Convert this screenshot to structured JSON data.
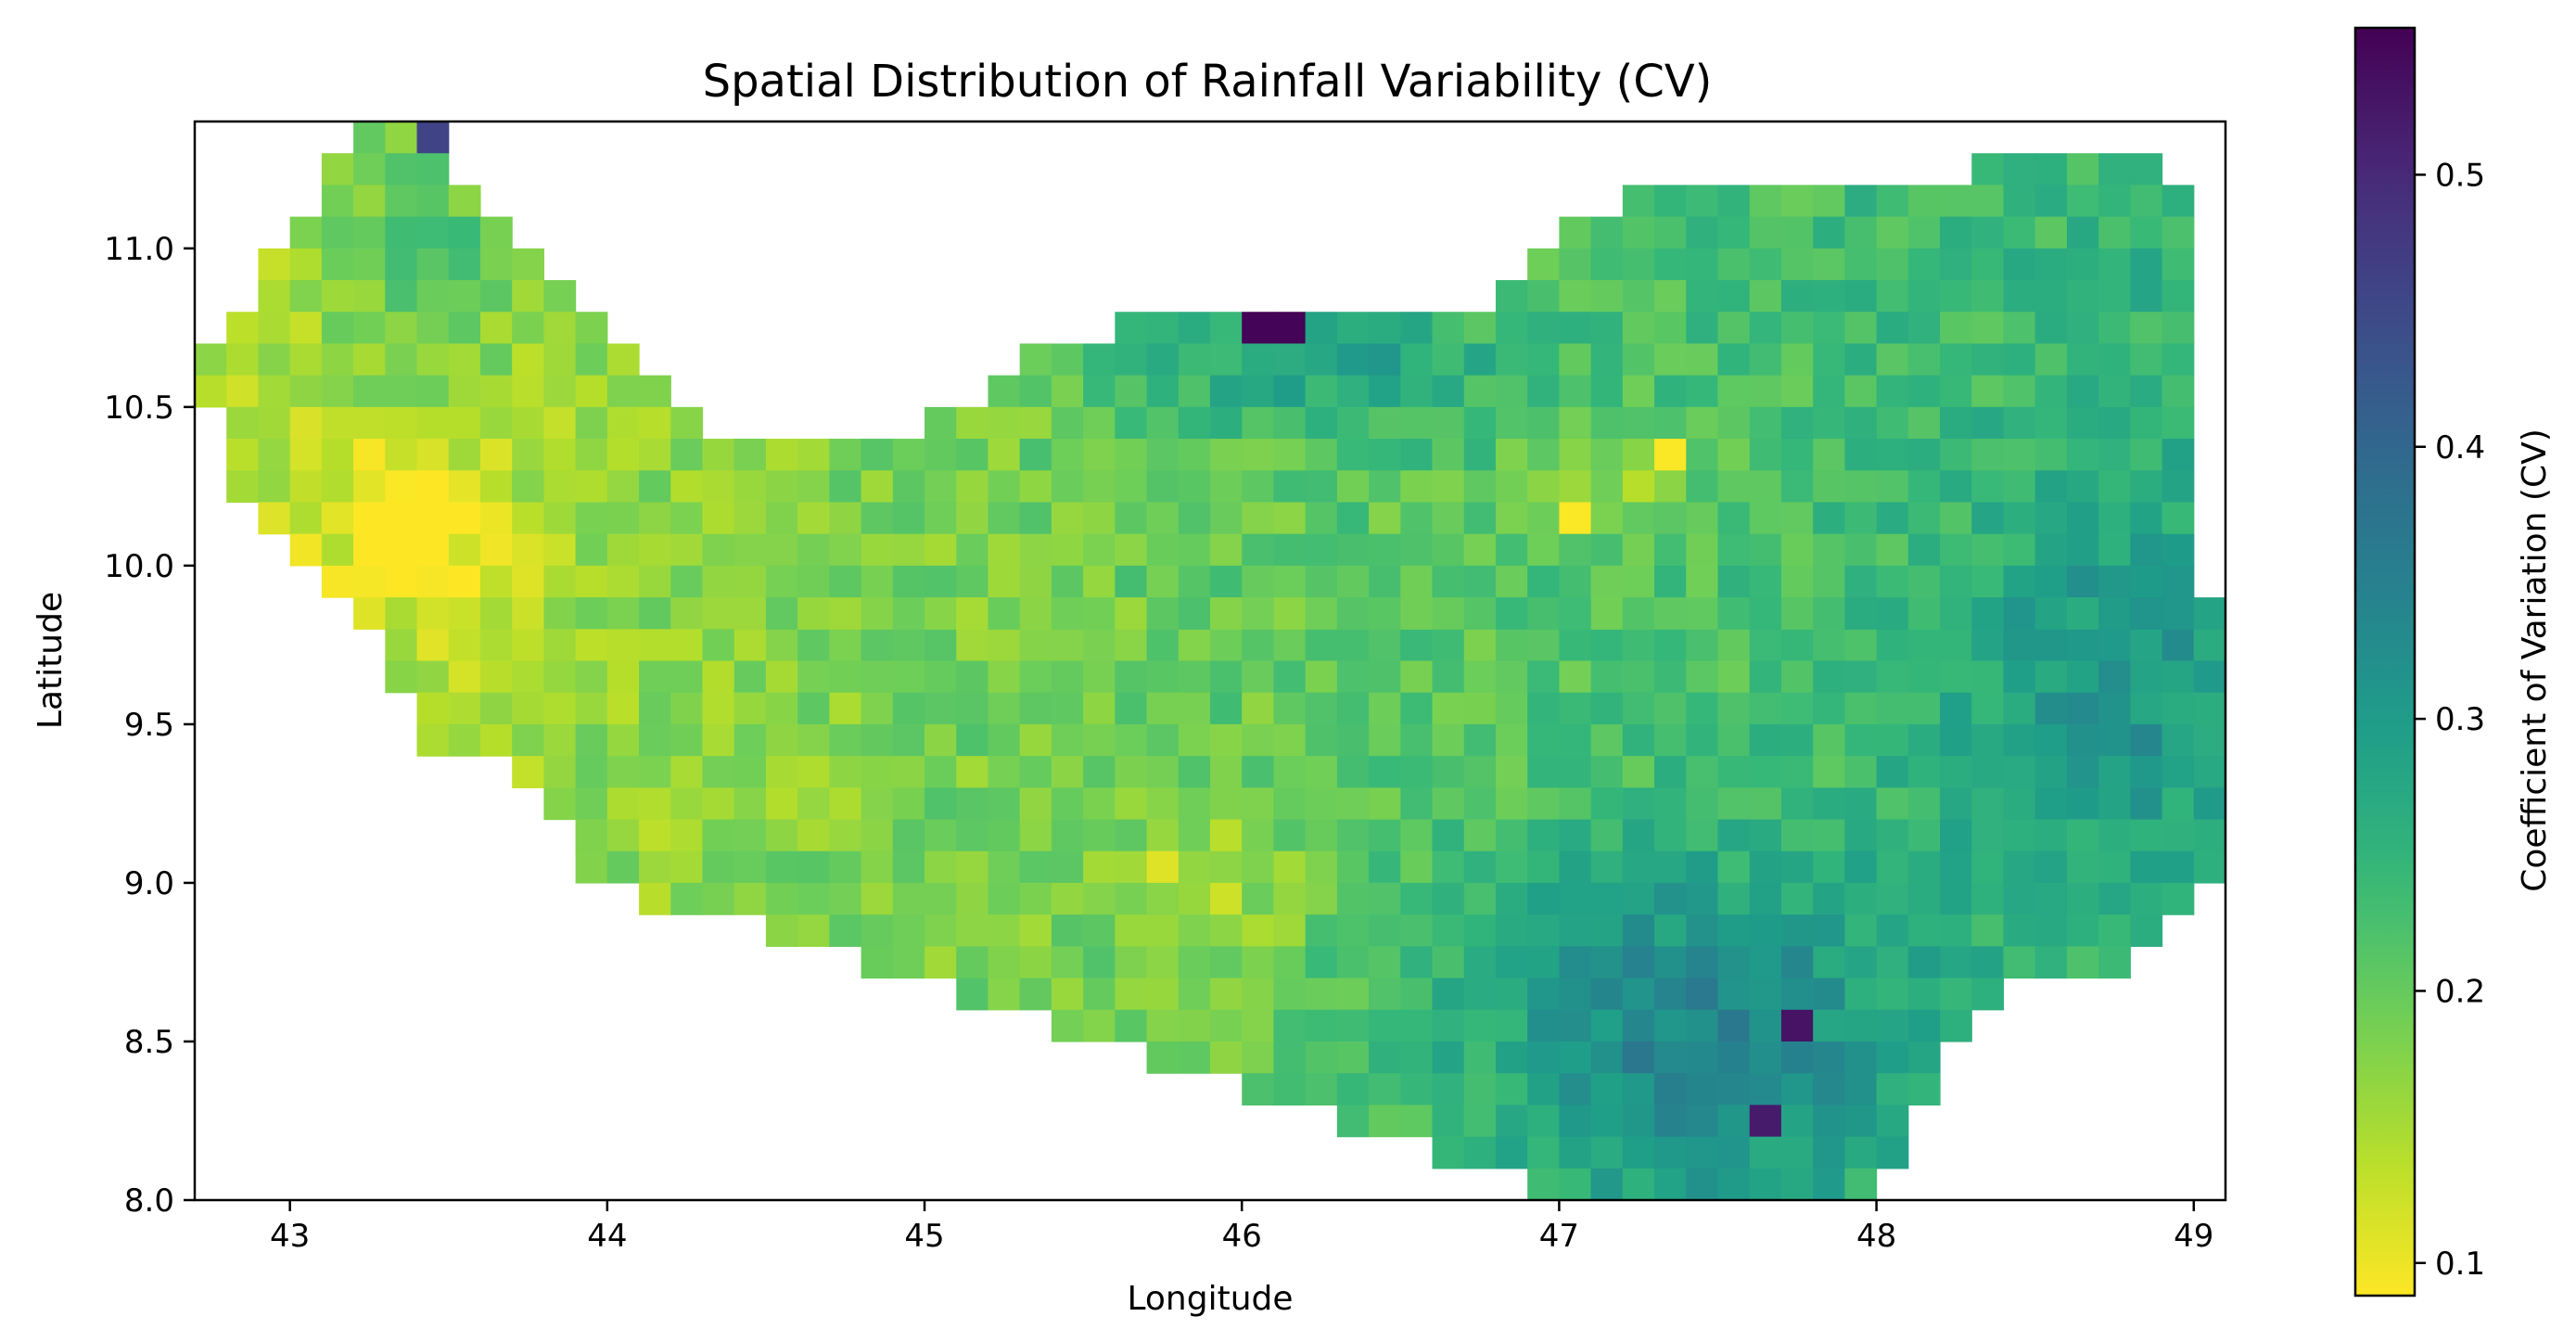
{
  "chart_data": {
    "type": "heatmap",
    "title": "Spatial Distribution of Rainfall Variability (CV)",
    "xlabel": "Longitude",
    "ylabel": "Latitude",
    "xlim": [
      42.7,
      49.1
    ],
    "ylim": [
      8.0,
      11.4
    ],
    "xticks": [
      43,
      44,
      45,
      46,
      47,
      48,
      49
    ],
    "yticks": [
      8.0,
      8.5,
      9.0,
      9.5,
      10.0,
      10.5,
      11.0
    ],
    "grid": false,
    "cell_size_deg": 0.1,
    "value_range": [
      0.088,
      0.554
    ],
    "colormap": "viridis_r",
    "colorbar": {
      "label": "Coefficient of Variation (CV)",
      "ticks": [
        0.1,
        0.2,
        0.3,
        0.4,
        0.5
      ],
      "vmin": 0.088,
      "vmax": 0.554
    },
    "region_extent_by_row": [
      {
        "lat": 11.35,
        "lon_range": [
          43.2,
          43.5
        ]
      },
      {
        "lat": 11.25,
        "lon_range": [
          43.1,
          43.5
        ]
      },
      {
        "lat": 11.15,
        "lon_range": [
          43.1,
          43.6
        ]
      },
      {
        "lat": 11.05,
        "lon_range": [
          43.0,
          43.7
        ]
      },
      {
        "lat": 10.95,
        "lon_range": [
          42.9,
          43.8
        ]
      },
      {
        "lat": 10.85,
        "lon_range": [
          42.9,
          43.9
        ]
      },
      {
        "lat": 10.75,
        "lon_range": [
          42.8,
          44.0
        ]
      },
      {
        "lat": 10.65,
        "lon_range": [
          42.7,
          44.1
        ]
      },
      {
        "lat": 10.55,
        "lon_range": [
          42.7,
          44.2
        ]
      },
      {
        "lat": 10.45,
        "lon_range": [
          42.8,
          44.3
        ]
      },
      {
        "lat": 10.35,
        "lon_range": [
          42.8,
          44.5
        ]
      },
      {
        "lat": 10.25,
        "lon_range": [
          42.8,
          45.0
        ]
      },
      {
        "lat": 10.15,
        "lon_range": [
          42.9,
          45.2
        ]
      },
      {
        "lat": 10.05,
        "lon_range": [
          43.0,
          45.6
        ]
      },
      {
        "lat": 9.95,
        "lon_range": [
          43.1,
          46.1
        ]
      },
      {
        "lat": 9.85,
        "lon_range": [
          43.2,
          47.2
        ]
      },
      {
        "lat": 9.75,
        "lon_range": [
          43.3,
          49.1
        ]
      },
      {
        "lat": 9.65,
        "lon_range": [
          43.3,
          49.1
        ]
      },
      {
        "lat": 9.55,
        "lon_range": [
          43.4,
          49.1
        ]
      },
      {
        "lat": 9.45,
        "lon_range": [
          43.4,
          49.1
        ]
      },
      {
        "lat": 9.35,
        "lon_range": [
          43.7,
          49.1
        ]
      },
      {
        "lat": 9.25,
        "lon_range": [
          43.8,
          49.1
        ]
      },
      {
        "lat": 9.15,
        "lon_range": [
          43.9,
          49.1
        ]
      },
      {
        "lat": 9.05,
        "lon_range": [
          43.9,
          49.1
        ]
      },
      {
        "lat": 8.95,
        "lon_range": [
          44.1,
          49.0
        ]
      },
      {
        "lat": 8.85,
        "lon_range": [
          44.5,
          48.9
        ]
      },
      {
        "lat": 8.75,
        "lon_range": [
          44.8,
          48.8
        ]
      },
      {
        "lat": 8.65,
        "lon_range": [
          45.1,
          48.4
        ]
      },
      {
        "lat": 8.55,
        "lon_range": [
          45.4,
          48.3
        ]
      },
      {
        "lat": 8.45,
        "lon_range": [
          45.7,
          48.2
        ]
      },
      {
        "lat": 8.35,
        "lon_range": [
          46.0,
          48.2
        ]
      },
      {
        "lat": 8.25,
        "lon_range": [
          46.3,
          48.1
        ]
      },
      {
        "lat": 8.15,
        "lon_range": [
          46.6,
          48.1
        ]
      },
      {
        "lat": 8.05,
        "lon_range": [
          46.9,
          48.0
        ]
      }
    ],
    "upper_east_region_by_row": [
      {
        "lat": 11.25,
        "lon_range": [
          48.3,
          48.9
        ]
      },
      {
        "lat": 11.15,
        "lon_range": [
          47.2,
          49.0
        ]
      },
      {
        "lat": 11.05,
        "lon_range": [
          47.0,
          49.0
        ]
      },
      {
        "lat": 10.95,
        "lon_range": [
          46.9,
          49.0
        ]
      },
      {
        "lat": 10.85,
        "lon_range": [
          46.8,
          49.0
        ]
      },
      {
        "lat": 10.75,
        "lon_range": [
          45.6,
          49.0
        ]
      },
      {
        "lat": 10.65,
        "lon_range": [
          45.3,
          49.0
        ]
      },
      {
        "lat": 10.55,
        "lon_range": [
          45.2,
          49.0
        ]
      },
      {
        "lat": 10.45,
        "lon_range": [
          45.0,
          49.0
        ]
      },
      {
        "lat": 10.35,
        "lon_range": [
          44.4,
          49.0
        ]
      },
      {
        "lat": 10.25,
        "lon_range": [
          44.4,
          49.0
        ]
      },
      {
        "lat": 10.15,
        "lon_range": [
          44.4,
          49.0
        ]
      },
      {
        "lat": 10.05,
        "lon_range": [
          44.4,
          49.0
        ]
      },
      {
        "lat": 9.95,
        "lon_range": [
          44.4,
          49.0
        ]
      },
      {
        "lat": 9.85,
        "lon_range": [
          44.4,
          49.1
        ]
      }
    ],
    "notable_cells": [
      {
        "lon": 46.05,
        "lat": 10.75,
        "cv": 0.55
      },
      {
        "lon": 46.15,
        "lat": 10.75,
        "cv": 0.55
      },
      {
        "lon": 47.75,
        "lat": 8.55,
        "cv": 0.53
      },
      {
        "lon": 47.65,
        "lat": 8.25,
        "cv": 0.52
      },
      {
        "lon": 43.45,
        "lat": 11.35,
        "cv": 0.46
      },
      {
        "lon": 47.35,
        "lat": 10.35,
        "cv": 0.09
      },
      {
        "lon": 47.05,
        "lat": 10.15,
        "cv": 0.09
      },
      {
        "lon": 43.35,
        "lat": 10.25,
        "cv": 0.09
      },
      {
        "lon": 45.75,
        "lat": 9.05,
        "cv": 0.11
      }
    ]
  }
}
